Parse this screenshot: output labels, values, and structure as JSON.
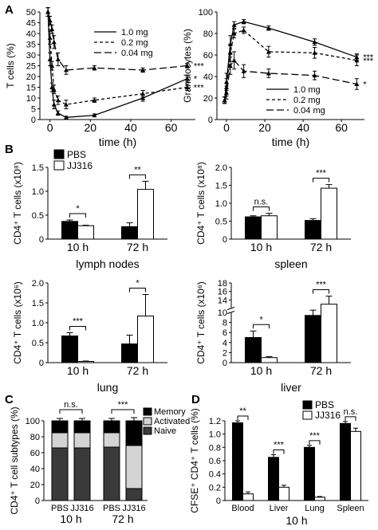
{
  "panels": {
    "A": "A",
    "B": "B",
    "C": "C",
    "D": "D"
  },
  "chart_data": [
    {
      "id": "A_left",
      "type": "line",
      "ylabel": "T cells (%)",
      "xlabel": "time (h)",
      "xlim": [
        -5,
        72
      ],
      "ylim": [
        0,
        50
      ],
      "xticks": [
        "0",
        "20",
        "40",
        "60"
      ],
      "yticks": [
        "0",
        "5",
        "10",
        "15",
        "20",
        "25",
        "30",
        "35",
        "40",
        "45",
        "50"
      ],
      "series": [
        {
          "name": "1.0 mg",
          "style": "solid",
          "x": [
            -1,
            0,
            1,
            2,
            4,
            8,
            22,
            46,
            68
          ],
          "y": [
            50,
            28,
            15,
            7,
            3,
            1,
            2,
            10,
            19
          ],
          "err": [
            2,
            3,
            2,
            2,
            1,
            0.5,
            0.6,
            1.5,
            1.5
          ]
        },
        {
          "name": "0.2 mg",
          "style": "short-dash",
          "x": [
            -1,
            0,
            1,
            2,
            4,
            8,
            22,
            46,
            68
          ],
          "y": [
            50,
            38,
            25,
            14,
            9,
            7,
            9,
            12,
            15
          ],
          "err": [
            2,
            3,
            2,
            2,
            2,
            2,
            1,
            1.5,
            1.5
          ]
        },
        {
          "name": "0.04 mg",
          "style": "long-dash",
          "x": [
            -1,
            0,
            1,
            2,
            4,
            8,
            22,
            46,
            68
          ],
          "y": [
            50,
            46,
            42,
            36,
            28,
            23,
            24,
            23,
            25
          ],
          "err": [
            2,
            2,
            2,
            3,
            3,
            2,
            1,
            1,
            1
          ]
        }
      ],
      "significance": [
        "*",
        "***",
        "***"
      ]
    },
    {
      "id": "A_right",
      "type": "line",
      "ylabel": "Granulocytes (%)",
      "xlabel": "time (h)",
      "xlim": [
        -5,
        72
      ],
      "ylim": [
        0,
        100
      ],
      "xticks": [
        "0",
        "20",
        "40",
        "60"
      ],
      "yticks": [
        "0",
        "20",
        "40",
        "60",
        "80",
        "100"
      ],
      "series": [
        {
          "name": "1.0 mg",
          "style": "solid",
          "x": [
            -1,
            0,
            2,
            4,
            9,
            22,
            46,
            68
          ],
          "y": [
            18,
            35,
            70,
            88,
            91,
            85,
            72,
            58
          ],
          "err": [
            3,
            8,
            8,
            3,
            2,
            2,
            3,
            3
          ]
        },
        {
          "name": "0.2 mg",
          "style": "short-dash",
          "x": [
            -1,
            0,
            2,
            4,
            9,
            22,
            46,
            68
          ],
          "y": [
            18,
            30,
            62,
            80,
            83,
            63,
            62,
            55
          ],
          "err": [
            3,
            8,
            8,
            4,
            3,
            5,
            5,
            5
          ]
        },
        {
          "name": "0.04 mg",
          "style": "long-dash",
          "x": [
            -1,
            0,
            2,
            4,
            9,
            22,
            46,
            68
          ],
          "y": [
            18,
            25,
            50,
            55,
            45,
            43,
            41,
            33
          ],
          "err": [
            3,
            6,
            8,
            8,
            6,
            4,
            4,
            5
          ]
        }
      ],
      "significance": [
        "***",
        "***",
        "*"
      ]
    },
    {
      "id": "B_lymph",
      "type": "bar",
      "ylabel": "CD4⁺ T cells (x10⁸)",
      "xlabel": "lymph nodes",
      "categories": [
        "10 h",
        "72 h"
      ],
      "ylim": [
        0,
        1.5
      ],
      "yticks": [
        "0",
        "0.5",
        "1.0",
        "1.5"
      ],
      "series": [
        {
          "name": "PBS",
          "values": [
            0.37,
            0.26
          ],
          "err": [
            0.03,
            0.08
          ]
        },
        {
          "name": "JJ316",
          "values": [
            0.28,
            1.04
          ],
          "err": [
            0.01,
            0.17
          ]
        }
      ],
      "significance": [
        "*",
        "**"
      ]
    },
    {
      "id": "B_spleen",
      "type": "bar",
      "ylabel": "CD4⁺ T cells (x10⁸)",
      "xlabel": "spleen",
      "categories": [
        "10 h",
        "72 h"
      ],
      "ylim": [
        0,
        2.0
      ],
      "yticks": [
        "0",
        "0.5",
        "1.0",
        "1.5",
        "2.0"
      ],
      "series": [
        {
          "name": "PBS",
          "values": [
            0.62,
            0.52
          ],
          "err": [
            0.03,
            0.05
          ]
        },
        {
          "name": "JJ316",
          "values": [
            0.65,
            1.42
          ],
          "err": [
            0.07,
            0.1
          ]
        }
      ],
      "significance": [
        "n.s.",
        "***"
      ]
    },
    {
      "id": "B_lung",
      "type": "bar",
      "ylabel": "CD4⁺ T cells (x10⁶)",
      "xlabel": "lung",
      "categories": [
        "10 h",
        "72 h"
      ],
      "ylim": [
        0,
        2.0
      ],
      "yticks": [
        "0",
        "0.5",
        "1.0",
        "1.5",
        "2.0"
      ],
      "series": [
        {
          "name": "PBS",
          "values": [
            0.67,
            0.47
          ],
          "err": [
            0.08,
            0.22
          ]
        },
        {
          "name": "JJ316",
          "values": [
            0.03,
            1.17
          ],
          "err": [
            0.01,
            0.54
          ]
        }
      ],
      "significance": [
        "***",
        "*"
      ]
    },
    {
      "id": "B_liver",
      "type": "bar",
      "ylabel": "CD4⁺ T cells (x10⁶)",
      "xlabel": "liver",
      "categories": [
        "10 h",
        "72 h"
      ],
      "ylim": [
        0,
        18
      ],
      "yticks": [
        "0",
        "2",
        "4",
        "6",
        "8",
        "10",
        "14",
        "16",
        "18"
      ],
      "axis_break": [
        10,
        12
      ],
      "series": [
        {
          "name": "PBS",
          "values": [
            5,
            9.4
          ],
          "err": [
            1.3,
            2.2
          ]
        },
        {
          "name": "JJ316",
          "values": [
            1,
            13
          ],
          "err": [
            0.2,
            1.9
          ]
        }
      ],
      "significance": [
        "*",
        "***"
      ]
    },
    {
      "id": "C",
      "type": "bar",
      "stacked": true,
      "ylabel": "CD4⁺ T cell subtypes (%)",
      "categories": [
        "PBS",
        "JJ316",
        "PBS",
        "JJ316"
      ],
      "groups": [
        "10 h",
        "72 h"
      ],
      "ylim": [
        0,
        100
      ],
      "yticks": [
        "0",
        "20",
        "40",
        "60",
        "80",
        "100"
      ],
      "series": [
        {
          "name": "Naive",
          "values": [
            66,
            66,
            67,
            15
          ]
        },
        {
          "name": "Activated",
          "values": [
            19,
            19,
            18,
            54
          ]
        },
        {
          "name": "Memory",
          "values": [
            15,
            15,
            15,
            31
          ]
        }
      ],
      "err": [
        3,
        3,
        3,
        4
      ],
      "significance": [
        "n.s.",
        "***"
      ]
    },
    {
      "id": "D",
      "type": "bar",
      "ylabel": "CFSE⁺ CD4⁺ T cells (%)",
      "xlabel": "10 h",
      "categories": [
        "Blood",
        "Liver",
        "Lung",
        "Spleen"
      ],
      "ylim": [
        0,
        1.2
      ],
      "yticks": [
        "0",
        "0.2",
        "0.4",
        "0.6",
        "0.8",
        "1.0",
        "1.2"
      ],
      "series": [
        {
          "name": "PBS",
          "values": [
            1.17,
            0.65,
            0.8,
            1.16
          ],
          "err": [
            0.03,
            0.04,
            0.03,
            0.03
          ]
        },
        {
          "name": "JJ316",
          "values": [
            0.1,
            0.2,
            0.05,
            1.04
          ],
          "err": [
            0.03,
            0.03,
            0.01,
            0.05
          ]
        }
      ],
      "significance": [
        "**",
        "***",
        "***",
        "n.s."
      ]
    }
  ]
}
